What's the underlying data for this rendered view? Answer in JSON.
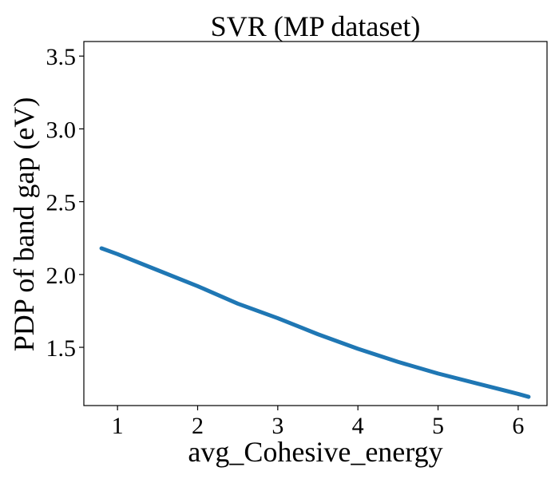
{
  "chart_data": {
    "type": "line",
    "title": "SVR (MP dataset)",
    "xlabel": "avg_Cohesive_energy",
    "ylabel": "PDP of band gap (eV)",
    "xlim": [
      0.58,
      6.36
    ],
    "ylim": [
      1.1,
      3.6
    ],
    "xticks": [
      1,
      2,
      3,
      4,
      5,
      6
    ],
    "xtick_labels": [
      "1",
      "2",
      "3",
      "4",
      "5",
      "6"
    ],
    "yticks": [
      1.5,
      2.0,
      2.5,
      3.0,
      3.5
    ],
    "ytick_labels": [
      "1.5",
      "2.0",
      "2.5",
      "3.0",
      "3.5"
    ],
    "grid": false,
    "series": [
      {
        "color": "#1f77b4",
        "x": [
          0.8,
          1.0,
          1.5,
          2.0,
          2.5,
          3.0,
          3.5,
          4.0,
          4.5,
          5.0,
          5.5,
          6.0,
          6.13
        ],
        "y": [
          2.18,
          2.14,
          2.03,
          1.92,
          1.8,
          1.7,
          1.59,
          1.49,
          1.4,
          1.32,
          1.25,
          1.18,
          1.16
        ]
      }
    ]
  }
}
